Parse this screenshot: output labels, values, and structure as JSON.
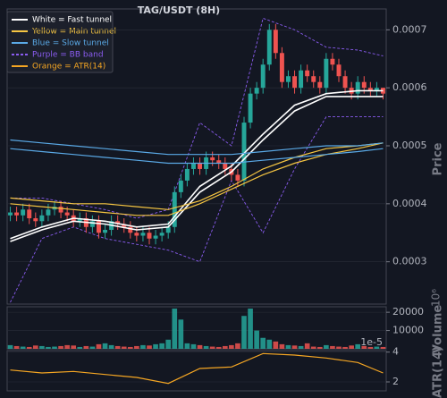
{
  "chart_data": {
    "type": "candlestick",
    "title": "TAG/USDT (8H)",
    "ylabel": "Price",
    "offset_label": "10⁶",
    "ylim": [
      0.000227,
      0.000736
    ],
    "yticks": [
      0.0003,
      0.0004,
      0.0005,
      0.0006,
      0.0007
    ],
    "up_color": "#26a69a",
    "down_color": "#ef5350",
    "open": [
      0.00038,
      0.000385,
      0.00038,
      0.00039,
      0.000375,
      0.00037,
      0.00038,
      0.00039,
      0.000395,
      0.000385,
      0.00038,
      0.00037,
      0.000375,
      0.00036,
      0.00037,
      0.00035,
      0.000355,
      0.00037,
      0.000365,
      0.00036,
      0.00035,
      0.000345,
      0.00035,
      0.00034,
      0.000345,
      0.00035,
      0.00036,
      0.00042,
      0.00044,
      0.00046,
      0.00047,
      0.00046,
      0.00048,
      0.000475,
      0.00047,
      0.00046,
      0.00045,
      0.00044,
      0.00054,
      0.00059,
      0.0006,
      0.00064,
      0.0007,
      0.00066,
      0.00061,
      0.00062,
      0.0006,
      0.00063,
      0.00062,
      0.00061,
      0.0006,
      0.00065,
      0.00064,
      0.00062,
      0.0006,
      0.00059,
      0.00061,
      0.0006,
      0.000595,
      0.0006
    ],
    "high": [
      0.000395,
      0.000395,
      0.0004,
      0.0004,
      0.000385,
      0.00039,
      0.0004,
      0.000405,
      0.000405,
      0.000395,
      0.00039,
      0.000385,
      0.000385,
      0.00038,
      0.00038,
      0.000365,
      0.00038,
      0.00038,
      0.000375,
      0.00037,
      0.00036,
      0.00036,
      0.00036,
      0.000355,
      0.00036,
      0.00037,
      0.00043,
      0.00045,
      0.00047,
      0.00048,
      0.00048,
      0.00049,
      0.00049,
      0.000485,
      0.00048,
      0.00047,
      0.00046,
      0.00055,
      0.0006,
      0.00061,
      0.00065,
      0.00071,
      0.00071,
      0.00067,
      0.00063,
      0.00063,
      0.00064,
      0.00064,
      0.00063,
      0.00062,
      0.00066,
      0.00066,
      0.00065,
      0.00063,
      0.00061,
      0.00062,
      0.00062,
      0.00061,
      0.00061,
      0.0006
    ],
    "low": [
      0.00037,
      0.00037,
      0.00037,
      0.000365,
      0.00036,
      0.00036,
      0.00037,
      0.00038,
      0.000375,
      0.00037,
      0.00036,
      0.00036,
      0.00035,
      0.00035,
      0.00034,
      0.00034,
      0.000345,
      0.000355,
      0.00035,
      0.00034,
      0.000335,
      0.000335,
      0.00033,
      0.00033,
      0.000335,
      0.00034,
      0.00035,
      0.00041,
      0.00043,
      0.00045,
      0.00045,
      0.00045,
      0.000465,
      0.00046,
      0.00045,
      0.00044,
      0.00043,
      0.00043,
      0.00053,
      0.00058,
      0.00059,
      0.00063,
      0.00065,
      0.0006,
      0.0006,
      0.00059,
      0.00059,
      0.00061,
      0.0006,
      0.00059,
      0.00059,
      0.00063,
      0.00061,
      0.00059,
      0.00058,
      0.00058,
      0.00059,
      0.000585,
      0.000585,
      0.00058
    ],
    "close": [
      0.000385,
      0.00038,
      0.00039,
      0.000375,
      0.00037,
      0.00038,
      0.00039,
      0.000395,
      0.000385,
      0.00038,
      0.00037,
      0.000375,
      0.00036,
      0.00037,
      0.00035,
      0.000355,
      0.00037,
      0.000365,
      0.00036,
      0.00035,
      0.000345,
      0.00035,
      0.00034,
      0.000345,
      0.00035,
      0.00036,
      0.00042,
      0.00044,
      0.00046,
      0.00047,
      0.00046,
      0.00048,
      0.000475,
      0.00047,
      0.00046,
      0.00045,
      0.00044,
      0.00054,
      0.00059,
      0.0006,
      0.00064,
      0.0007,
      0.00066,
      0.00061,
      0.00062,
      0.0006,
      0.00063,
      0.00062,
      0.00061,
      0.0006,
      0.00065,
      0.00064,
      0.00062,
      0.0006,
      0.00059,
      0.00061,
      0.0006,
      0.000595,
      0.0006,
      0.00059
    ],
    "line_x": [
      0,
      5,
      10,
      15,
      20,
      25,
      30,
      35,
      40,
      45,
      50,
      55,
      59
    ],
    "series": [
      {
        "name": "White = Fast tunnel",
        "color": "#ffffff",
        "dashed": false,
        "upper": [
          0.00034,
          0.00036,
          0.000375,
          0.00037,
          0.00036,
          0.000365,
          0.00043,
          0.000465,
          0.00052,
          0.00057,
          0.00059,
          0.000595,
          0.000595
        ],
        "lower": [
          0.000335,
          0.000355,
          0.00037,
          0.000365,
          0.000355,
          0.00036,
          0.00042,
          0.000455,
          0.00051,
          0.00056,
          0.000585,
          0.000585,
          0.000585
        ]
      },
      {
        "name": "Yellow = Main tunnel",
        "color": "#f5c542",
        "dashed": false,
        "upper": [
          0.00041,
          0.000405,
          0.0004,
          0.0004,
          0.000395,
          0.00039,
          0.000405,
          0.00043,
          0.00046,
          0.00048,
          0.000495,
          0.0005,
          0.000505
        ],
        "lower": [
          0.0004,
          0.000395,
          0.00039,
          0.000385,
          0.00038,
          0.00038,
          0.0004,
          0.000425,
          0.00045,
          0.00047,
          0.000485,
          0.000495,
          0.000505
        ]
      },
      {
        "name": "Blue = Slow tunnel",
        "color": "#5aa9e6",
        "dashed": false,
        "upper": [
          0.00051,
          0.000505,
          0.0005,
          0.000495,
          0.00049,
          0.000485,
          0.000485,
          0.000485,
          0.00049,
          0.000495,
          0.0005,
          0.0005,
          0.000505
        ],
        "lower": [
          0.000495,
          0.00049,
          0.000485,
          0.00048,
          0.000475,
          0.00047,
          0.00047,
          0.00047,
          0.000475,
          0.00048,
          0.000485,
          0.00049,
          0.000495
        ]
      },
      {
        "name": "Purple = BB band",
        "color": "#8a5cf0",
        "dashed": true,
        "upper": [
          0.00041,
          0.00041,
          0.0004,
          0.00039,
          0.000375,
          0.00039,
          0.00054,
          0.0005,
          0.00072,
          0.0007,
          0.00067,
          0.000665,
          0.000655
        ],
        "lower": [
          0.00023,
          0.00034,
          0.00036,
          0.00034,
          0.00033,
          0.00032,
          0.0003,
          0.00044,
          0.00035,
          0.00046,
          0.00055,
          0.00055,
          0.00055
        ]
      }
    ],
    "volume": {
      "ylabel": "Volume",
      "ylim": [
        0,
        23000
      ],
      "yticks": [
        10000,
        20000
      ],
      "values": [
        2000,
        1500,
        1200,
        1000,
        1800,
        1500,
        1000,
        1200,
        1500,
        2000,
        1800,
        1000,
        1500,
        1200,
        2500,
        3000,
        2000,
        1500,
        1200,
        1000,
        1500,
        2000,
        1800,
        2500,
        3000,
        5000,
        22000,
        16000,
        3000,
        2500,
        2000,
        1500,
        1200,
        1000,
        1500,
        2000,
        3000,
        18000,
        22000,
        10000,
        6000,
        5000,
        4000,
        2500,
        2000,
        1800,
        1500,
        3000,
        1200,
        1000,
        2000,
        1500,
        1200,
        1000,
        1800,
        2500,
        1500,
        1000,
        1200,
        1000
      ]
    },
    "atr": {
      "name": "Orange = ATR(14)",
      "ylabel": "ATR(14)",
      "color": "#f5a623",
      "offset_label": "1e-5",
      "ylim": [
        1.4,
        4.1
      ],
      "yticks": [
        2,
        4
      ],
      "values": [
        2.8,
        2.6,
        2.7,
        2.5,
        2.3,
        1.9,
        2.9,
        3.0,
        3.9,
        3.8,
        3.6,
        3.3,
        2.6
      ]
    }
  }
}
